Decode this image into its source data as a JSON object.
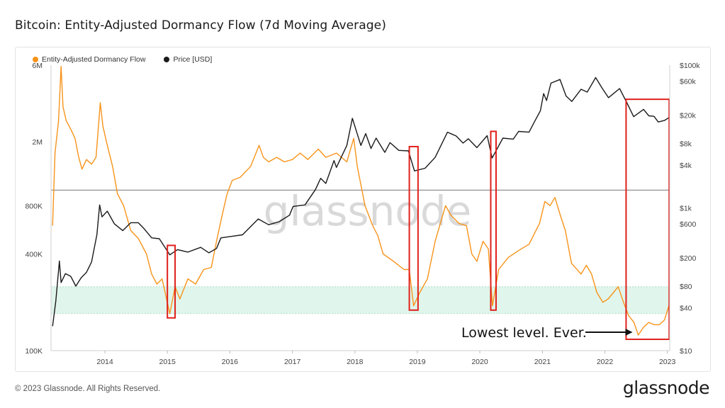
{
  "title": "Bitcoin: Entity-Adjusted Dormancy Flow (7d Moving Average)",
  "footer": {
    "copyright": "© 2023 Glassnode. All Rights Reserved.",
    "brand": "glassnode"
  },
  "watermark": "glassnode",
  "colors": {
    "dormancy": "#F7931A",
    "price": "#1a1a1a",
    "band": "#d8f2e6",
    "highlight": "#e0201b",
    "midline": "#777777"
  },
  "chart_data": {
    "type": "line",
    "title": "Bitcoin: Entity-Adjusted Dormancy Flow (7d Moving Average)",
    "xlabel": "",
    "ylabel": "",
    "x_ticks": [
      "2014",
      "2015",
      "2016",
      "2017",
      "2018",
      "2019",
      "2020",
      "2021",
      "2022",
      "2023"
    ],
    "y_left": {
      "scale": "log",
      "ticks": [
        "6M",
        "2M",
        "800K",
        "400K",
        "100K"
      ],
      "tick_values": [
        6000000,
        2000000,
        800000,
        400000,
        100000
      ],
      "range": [
        100000,
        6000000
      ]
    },
    "y_right": {
      "scale": "log",
      "ticks": [
        "$100k",
        "$60k",
        "$20k",
        "$8k",
        "$4k",
        "$1k",
        "$600",
        "$200",
        "$80",
        "$40",
        "$10"
      ],
      "tick_values": [
        100000,
        60000,
        20000,
        8000,
        4000,
        1000,
        600,
        200,
        80,
        40,
        10
      ],
      "range": [
        10,
        100000
      ]
    },
    "legend": {
      "position": "top-left"
    },
    "grid": false,
    "reference_line": {
      "axis": "left",
      "value": 1000000
    },
    "shaded_band": {
      "axis": "left",
      "low": 170000,
      "high": 250000
    },
    "series": [
      {
        "name": "Entity-Adjusted Dormancy Flow",
        "axis": "left",
        "points": [
          [
            "2013-03-01",
            600000
          ],
          [
            "2013-03-15",
            1700000
          ],
          [
            "2013-04-05",
            2700000
          ],
          [
            "2013-04-20",
            5900000
          ],
          [
            "2013-05-01",
            3300000
          ],
          [
            "2013-05-20",
            2700000
          ],
          [
            "2013-06-15",
            2400000
          ],
          [
            "2013-07-10",
            2100000
          ],
          [
            "2013-08-01",
            1600000
          ],
          [
            "2013-08-20",
            1350000
          ],
          [
            "2013-09-15",
            1550000
          ],
          [
            "2013-10-15",
            1450000
          ],
          [
            "2013-11-10",
            1600000
          ],
          [
            "2013-12-05",
            3500000
          ],
          [
            "2013-12-20",
            2500000
          ],
          [
            "2014-01-15",
            1900000
          ],
          [
            "2014-02-15",
            1400000
          ],
          [
            "2014-03-15",
            950000
          ],
          [
            "2014-04-20",
            800000
          ],
          [
            "2014-06-01",
            560000
          ],
          [
            "2014-07-15",
            500000
          ],
          [
            "2014-09-01",
            400000
          ],
          [
            "2014-10-01",
            300000
          ],
          [
            "2014-11-01",
            260000
          ],
          [
            "2014-12-01",
            280000
          ],
          [
            "2015-01-15",
            170000
          ],
          [
            "2015-02-15",
            250000
          ],
          [
            "2015-03-15",
            210000
          ],
          [
            "2015-05-01",
            280000
          ],
          [
            "2015-06-15",
            260000
          ],
          [
            "2015-08-01",
            320000
          ],
          [
            "2015-09-15",
            330000
          ],
          [
            "2015-10-15",
            480000
          ],
          [
            "2015-11-15",
            680000
          ],
          [
            "2015-12-15",
            940000
          ],
          [
            "2016-01-15",
            1150000
          ],
          [
            "2016-03-01",
            1200000
          ],
          [
            "2016-05-01",
            1400000
          ],
          [
            "2016-06-20",
            1900000
          ],
          [
            "2016-07-15",
            1600000
          ],
          [
            "2016-08-15",
            1500000
          ],
          [
            "2016-10-01",
            1600000
          ],
          [
            "2016-11-15",
            1500000
          ],
          [
            "2017-01-01",
            1550000
          ],
          [
            "2017-02-15",
            1700000
          ],
          [
            "2017-04-01",
            1550000
          ],
          [
            "2017-06-01",
            1800000
          ],
          [
            "2017-07-15",
            1600000
          ],
          [
            "2017-09-15",
            1700000
          ],
          [
            "2017-11-15",
            1500000
          ],
          [
            "2017-12-25",
            2100000
          ],
          [
            "2018-01-15",
            1400000
          ],
          [
            "2018-03-01",
            800000
          ],
          [
            "2018-04-15",
            600000
          ],
          [
            "2018-05-15",
            520000
          ],
          [
            "2018-06-15",
            400000
          ],
          [
            "2018-08-15",
            360000
          ],
          [
            "2018-10-15",
            320000
          ],
          [
            "2018-11-15",
            320000
          ],
          [
            "2018-12-10",
            190000
          ],
          [
            "2019-01-15",
            230000
          ],
          [
            "2019-03-01",
            280000
          ],
          [
            "2019-04-15",
            480000
          ],
          [
            "2019-06-15",
            800000
          ],
          [
            "2019-07-15",
            700000
          ],
          [
            "2019-09-01",
            620000
          ],
          [
            "2019-10-15",
            600000
          ],
          [
            "2019-11-15",
            400000
          ],
          [
            "2019-12-15",
            360000
          ],
          [
            "2020-01-20",
            480000
          ],
          [
            "2020-02-20",
            430000
          ],
          [
            "2020-03-15",
            190000
          ],
          [
            "2020-04-20",
            320000
          ],
          [
            "2020-06-15",
            380000
          ],
          [
            "2020-08-15",
            420000
          ],
          [
            "2020-10-15",
            460000
          ],
          [
            "2020-12-15",
            620000
          ],
          [
            "2021-01-15",
            850000
          ],
          [
            "2021-02-15",
            800000
          ],
          [
            "2021-03-15",
            900000
          ],
          [
            "2021-04-15",
            700000
          ],
          [
            "2021-05-15",
            560000
          ],
          [
            "2021-06-20",
            350000
          ],
          [
            "2021-08-15",
            300000
          ],
          [
            "2021-09-15",
            340000
          ],
          [
            "2021-10-15",
            300000
          ],
          [
            "2021-11-15",
            230000
          ],
          [
            "2021-12-20",
            200000
          ],
          [
            "2022-01-20",
            210000
          ],
          [
            "2022-02-20",
            230000
          ],
          [
            "2022-03-20",
            250000
          ],
          [
            "2022-04-20",
            200000
          ],
          [
            "2022-05-20",
            165000
          ],
          [
            "2022-06-20",
            150000
          ],
          [
            "2022-07-15",
            125000
          ],
          [
            "2022-08-15",
            140000
          ],
          [
            "2022-09-15",
            150000
          ],
          [
            "2022-10-15",
            145000
          ],
          [
            "2022-11-15",
            145000
          ],
          [
            "2022-12-15",
            155000
          ],
          [
            "2023-01-10",
            190000
          ]
        ]
      },
      {
        "name": "Price [USD]",
        "axis": "right",
        "points": [
          [
            "2013-03-01",
            22
          ],
          [
            "2013-03-20",
            50
          ],
          [
            "2013-04-10",
            180
          ],
          [
            "2013-04-20",
            90
          ],
          [
            "2013-05-15",
            120
          ],
          [
            "2013-06-15",
            110
          ],
          [
            "2013-07-15",
            80
          ],
          [
            "2013-08-15",
            105
          ],
          [
            "2013-09-15",
            125
          ],
          [
            "2013-10-15",
            175
          ],
          [
            "2013-11-15",
            420
          ],
          [
            "2013-12-01",
            1100
          ],
          [
            "2013-12-15",
            750
          ],
          [
            "2014-01-15",
            900
          ],
          [
            "2014-02-25",
            600
          ],
          [
            "2014-04-15",
            480
          ],
          [
            "2014-06-01",
            620
          ],
          [
            "2014-07-15",
            620
          ],
          [
            "2014-08-15",
            520
          ],
          [
            "2014-10-01",
            380
          ],
          [
            "2014-11-15",
            370
          ],
          [
            "2015-01-15",
            220
          ],
          [
            "2015-03-01",
            260
          ],
          [
            "2015-05-01",
            240
          ],
          [
            "2015-07-15",
            280
          ],
          [
            "2015-09-01",
            235
          ],
          [
            "2015-10-15",
            270
          ],
          [
            "2015-11-10",
            380
          ],
          [
            "2016-01-15",
            400
          ],
          [
            "2016-03-15",
            420
          ],
          [
            "2016-06-15",
            700
          ],
          [
            "2016-08-15",
            580
          ],
          [
            "2016-10-15",
            640
          ],
          [
            "2016-12-15",
            790
          ],
          [
            "2017-01-05",
            1050
          ],
          [
            "2017-03-15",
            1100
          ],
          [
            "2017-05-15",
            1800
          ],
          [
            "2017-06-15",
            2600
          ],
          [
            "2017-07-15",
            2200
          ],
          [
            "2017-09-01",
            4600
          ],
          [
            "2017-09-15",
            3700
          ],
          [
            "2017-11-15",
            7500
          ],
          [
            "2017-12-17",
            18000
          ],
          [
            "2018-02-05",
            7500
          ],
          [
            "2018-03-05",
            11000
          ],
          [
            "2018-04-05",
            6800
          ],
          [
            "2018-05-05",
            9500
          ],
          [
            "2018-06-25",
            6000
          ],
          [
            "2018-07-25",
            8200
          ],
          [
            "2018-09-15",
            6400
          ],
          [
            "2018-11-10",
            6300
          ],
          [
            "2018-12-15",
            3300
          ],
          [
            "2019-02-15",
            3600
          ],
          [
            "2019-04-15",
            5100
          ],
          [
            "2019-06-26",
            11500
          ],
          [
            "2019-08-15",
            10200
          ],
          [
            "2019-09-25",
            8100
          ],
          [
            "2019-10-26",
            9300
          ],
          [
            "2019-12-15",
            7000
          ],
          [
            "2020-02-13",
            10300
          ],
          [
            "2020-03-13",
            5000
          ],
          [
            "2020-05-15",
            9500
          ],
          [
            "2020-07-15",
            9200
          ],
          [
            "2020-08-15",
            11800
          ],
          [
            "2020-10-15",
            11500
          ],
          [
            "2020-11-15",
            16000
          ],
          [
            "2020-12-20",
            23000
          ],
          [
            "2021-01-08",
            40000
          ],
          [
            "2021-01-25",
            32000
          ],
          [
            "2021-02-20",
            56000
          ],
          [
            "2021-04-14",
            63000
          ],
          [
            "2021-05-19",
            37000
          ],
          [
            "2021-06-22",
            31000
          ],
          [
            "2021-08-15",
            46000
          ],
          [
            "2021-09-20",
            42000
          ],
          [
            "2021-11-08",
            67000
          ],
          [
            "2021-12-15",
            48000
          ],
          [
            "2022-01-22",
            35000
          ],
          [
            "2022-03-28",
            47000
          ],
          [
            "2022-05-12",
            29000
          ],
          [
            "2022-06-18",
            19000
          ],
          [
            "2022-08-15",
            24000
          ],
          [
            "2022-09-15",
            19500
          ],
          [
            "2022-10-15",
            19200
          ],
          [
            "2022-11-09",
            16000
          ],
          [
            "2022-12-15",
            16800
          ],
          [
            "2023-01-12",
            18500
          ]
        ]
      }
    ],
    "annotations": [
      {
        "text": "Lowest level. Ever.",
        "points_to": "2022-07-15"
      }
    ],
    "highlight_boxes": [
      {
        "from": "2015-01-01",
        "to": "2015-02-15"
      },
      {
        "from": "2018-11-15",
        "to": "2019-01-05"
      },
      {
        "from": "2020-03-05",
        "to": "2020-04-05"
      },
      {
        "from": "2022-05-05",
        "to": "2023-01-12"
      }
    ]
  }
}
